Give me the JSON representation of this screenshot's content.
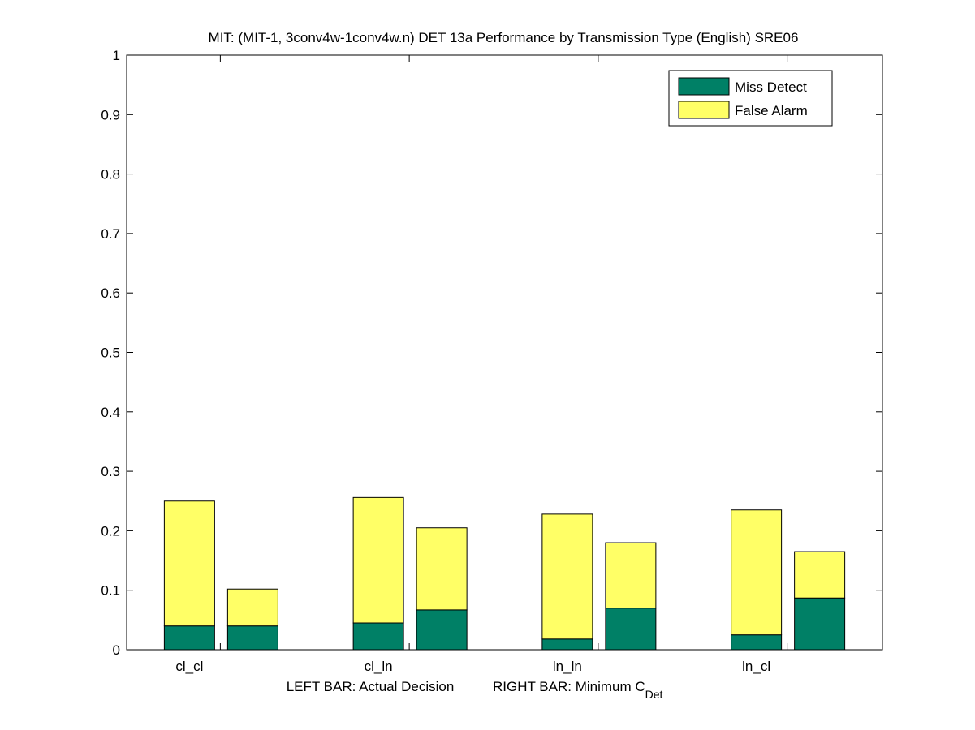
{
  "chart_data": {
    "type": "bar",
    "stacked": true,
    "title": "MIT: (MIT-1, 3conv4w-1conv4w.n) DET 13a Performance by Transmission Type (English) SRE06",
    "xlabel_left": "LEFT BAR: Actual Decision",
    "xlabel_right_prefix": "RIGHT BAR: Minimum C",
    "xlabel_right_subscript": "Det",
    "ylabel": "",
    "ylim": [
      0,
      1
    ],
    "yticks": [
      0,
      0.1,
      0.2,
      0.3,
      0.4,
      0.5,
      0.6,
      0.7,
      0.8,
      0.9,
      1
    ],
    "ytick_labels": [
      "0",
      "0.1",
      "0.2",
      "0.3",
      "0.4",
      "0.5",
      "0.6",
      "0.7",
      "0.8",
      "0.9",
      "1"
    ],
    "categories": [
      "cl_cl",
      "cl_ln",
      "ln_ln",
      "ln_cl"
    ],
    "bar_pairs": [
      "Actual Decision",
      "Minimum C_Det"
    ],
    "series": [
      {
        "name": "Miss Detect",
        "color": "#008066",
        "actual": [
          0.04,
          0.045,
          0.018,
          0.025
        ],
        "minimum": [
          0.04,
          0.067,
          0.07,
          0.087
        ]
      },
      {
        "name": "False Alarm",
        "color": "#ffff66",
        "actual": [
          0.21,
          0.211,
          0.21,
          0.21
        ],
        "minimum": [
          0.062,
          0.138,
          0.11,
          0.078
        ]
      }
    ],
    "legend_position": "top-right",
    "grid": false
  }
}
